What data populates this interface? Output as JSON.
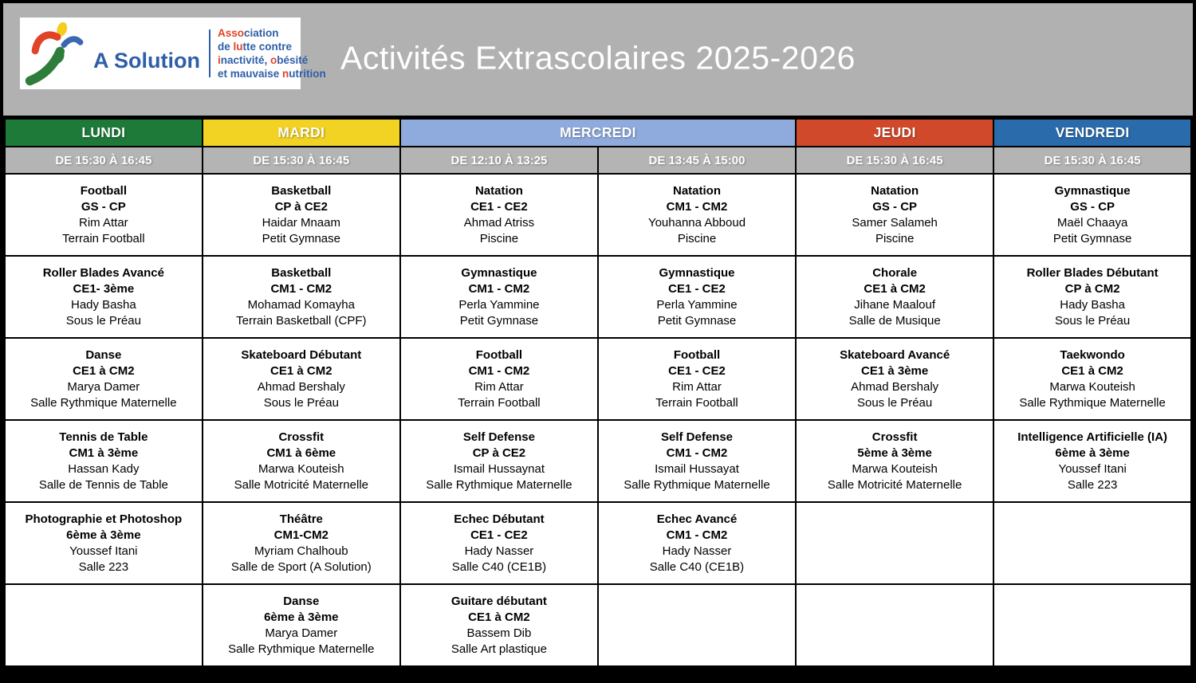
{
  "header": {
    "title": "Activités Extrascolaires 2025-2026",
    "logo": {
      "brand": "A Solution",
      "figure": "runner-logo",
      "colors": {
        "blue": "#2e5ea8",
        "red": "#e04327",
        "green": "#2e7d3a",
        "yellow": "#f3ce1c"
      },
      "tagline": [
        {
          "segments": [
            {
              "text": "Asso",
              "color": "red"
            },
            {
              "text": "ciation",
              "color": "blue"
            }
          ]
        },
        {
          "segments": [
            {
              "text": "de ",
              "color": "blue"
            },
            {
              "text": "lu",
              "color": "red"
            },
            {
              "text": "tte contre",
              "color": "blue"
            }
          ]
        },
        {
          "segments": [
            {
              "text": "i",
              "color": "red"
            },
            {
              "text": "nactivité, ",
              "color": "blue"
            },
            {
              "text": "o",
              "color": "red"
            },
            {
              "text": "bésité",
              "color": "blue"
            }
          ]
        },
        {
          "segments": [
            {
              "text": "et mauvaise ",
              "color": "blue"
            },
            {
              "text": "n",
              "color": "red"
            },
            {
              "text": "utrition",
              "color": "blue"
            }
          ]
        }
      ]
    }
  },
  "days": [
    {
      "label": "LUNDI",
      "color": "#1e7a38",
      "span": 1
    },
    {
      "label": "MARDI",
      "color": "#f2d324",
      "span": 1
    },
    {
      "label": "MERCREDI",
      "color": "#8faadc",
      "span": 2
    },
    {
      "label": "JEUDI",
      "color": "#d0492a",
      "span": 1
    },
    {
      "label": "VENDREDI",
      "color": "#2a6bac",
      "span": 1
    }
  ],
  "time_slots": [
    "DE 15:30 À 16:45",
    "DE 15:30 À 16:45",
    "DE 12:10 À 13:25",
    "DE 13:45 À 15:00",
    "DE 15:30 À 16:45",
    "DE 15:30 À 16:45"
  ],
  "grid": [
    [
      {
        "activity": "Football",
        "level": "GS - CP",
        "instructor": "Rim Attar",
        "location": "Terrain Football"
      },
      {
        "activity": "Basketball",
        "level": "CP à CE2",
        "instructor": "Haidar Mnaam",
        "location": "Petit Gymnase"
      },
      {
        "activity": "Natation",
        "level": "CE1 - CE2",
        "instructor": "Ahmad Atriss",
        "location": "Piscine"
      },
      {
        "activity": "Natation",
        "level": "CM1 - CM2",
        "instructor": "Youhanna Abboud",
        "location": "Piscine"
      },
      {
        "activity": "Natation",
        "level": "GS - CP",
        "instructor": "Samer Salameh",
        "location": "Piscine"
      },
      {
        "activity": "Gymnastique",
        "level": "GS - CP",
        "instructor": "Maël Chaaya",
        "location": "Petit Gymnase"
      }
    ],
    [
      {
        "activity": "Roller Blades Avancé",
        "level": "CE1- 3ème",
        "instructor": "Hady Basha",
        "location": "Sous le Préau"
      },
      {
        "activity": "Basketball",
        "level": "CM1 - CM2",
        "instructor": "Mohamad Komayha",
        "location": "Terrain Basketball (CPF)"
      },
      {
        "activity": "Gymnastique",
        "level": "CM1 - CM2",
        "instructor": "Perla Yammine",
        "location": "Petit Gymnase"
      },
      {
        "activity": "Gymnastique",
        "level": "CE1 - CE2",
        "instructor": "Perla Yammine",
        "location": "Petit Gymnase"
      },
      {
        "activity": "Chorale",
        "level": "CE1 à CM2",
        "instructor": "Jihane Maalouf",
        "location": "Salle de Musique"
      },
      {
        "activity": "Roller Blades Débutant",
        "level": "CP à CM2",
        "instructor": "Hady Basha",
        "location": "Sous le Préau"
      }
    ],
    [
      {
        "activity": "Danse",
        "level": "CE1 à CM2",
        "instructor": "Marya Damer",
        "location": "Salle Rythmique Maternelle"
      },
      {
        "activity": "Skateboard Débutant",
        "level": "CE1 à CM2",
        "instructor": "Ahmad Bershaly",
        "location": "Sous le Préau"
      },
      {
        "activity": "Football",
        "level": "CM1 - CM2",
        "instructor": "Rim Attar",
        "location": "Terrain Football"
      },
      {
        "activity": "Football",
        "level": "CE1 - CE2",
        "instructor": "Rim Attar",
        "location": "Terrain Football"
      },
      {
        "activity": "Skateboard Avancé",
        "level": "CE1 à 3ème",
        "instructor": "Ahmad Bershaly",
        "location": "Sous le Préau"
      },
      {
        "activity": "Taekwondo",
        "level": "CE1 à CM2",
        "instructor": "Marwa Kouteish",
        "location": "Salle Rythmique Maternelle"
      }
    ],
    [
      {
        "activity": "Tennis de Table",
        "level": "CM1 à 3ème",
        "instructor": "Hassan Kady",
        "location": "Salle de Tennis de Table"
      },
      {
        "activity": "Crossfit",
        "level": "CM1 à  6ème",
        "instructor": "Marwa Kouteish",
        "location": "Salle Motricité Maternelle"
      },
      {
        "activity": "Self Defense",
        "level": "CP à CE2",
        "instructor": "Ismail Hussaynat",
        "location": "Salle Rythmique Maternelle"
      },
      {
        "activity": "Self Defense",
        "level": "CM1 - CM2",
        "instructor": "Ismail Hussayat",
        "location": "Salle Rythmique Maternelle"
      },
      {
        "activity": "Crossfit",
        "level": "5ème à 3ème",
        "instructor": "Marwa Kouteish",
        "location": "Salle Motricité Maternelle"
      },
      {
        "activity": "Intelligence Artificielle (IA)",
        "level": "6ème à 3ème",
        "instructor": "Youssef Itani",
        "location": "Salle 223"
      }
    ],
    [
      {
        "activity": "Photographie et Photoshop",
        "level": "6ème à 3ème",
        "instructor": "Youssef Itani",
        "location": "Salle 223"
      },
      {
        "activity": "Théâtre",
        "level": "CM1-CM2",
        "instructor": "Myriam Chalhoub",
        "location": "Salle de Sport (A Solution)"
      },
      {
        "activity": "Echec Débutant",
        "level": "CE1 - CE2",
        "instructor": "Hady Nasser",
        "location": "Salle C40 (CE1B)"
      },
      {
        "activity": "Echec Avancé",
        "level": "CM1 - CM2",
        "instructor": "Hady Nasser",
        "location": "Salle C40 (CE1B)"
      },
      null,
      null
    ],
    [
      null,
      {
        "activity": "Danse",
        "level": "6ème à 3ème",
        "instructor": "Marya Damer",
        "location": "Salle Rythmique Maternelle"
      },
      {
        "activity": "Guitare débutant",
        "level": "CE1 à CM2",
        "instructor": "Bassem Dib",
        "location": "Salle Art plastique"
      },
      null,
      null,
      null
    ]
  ]
}
